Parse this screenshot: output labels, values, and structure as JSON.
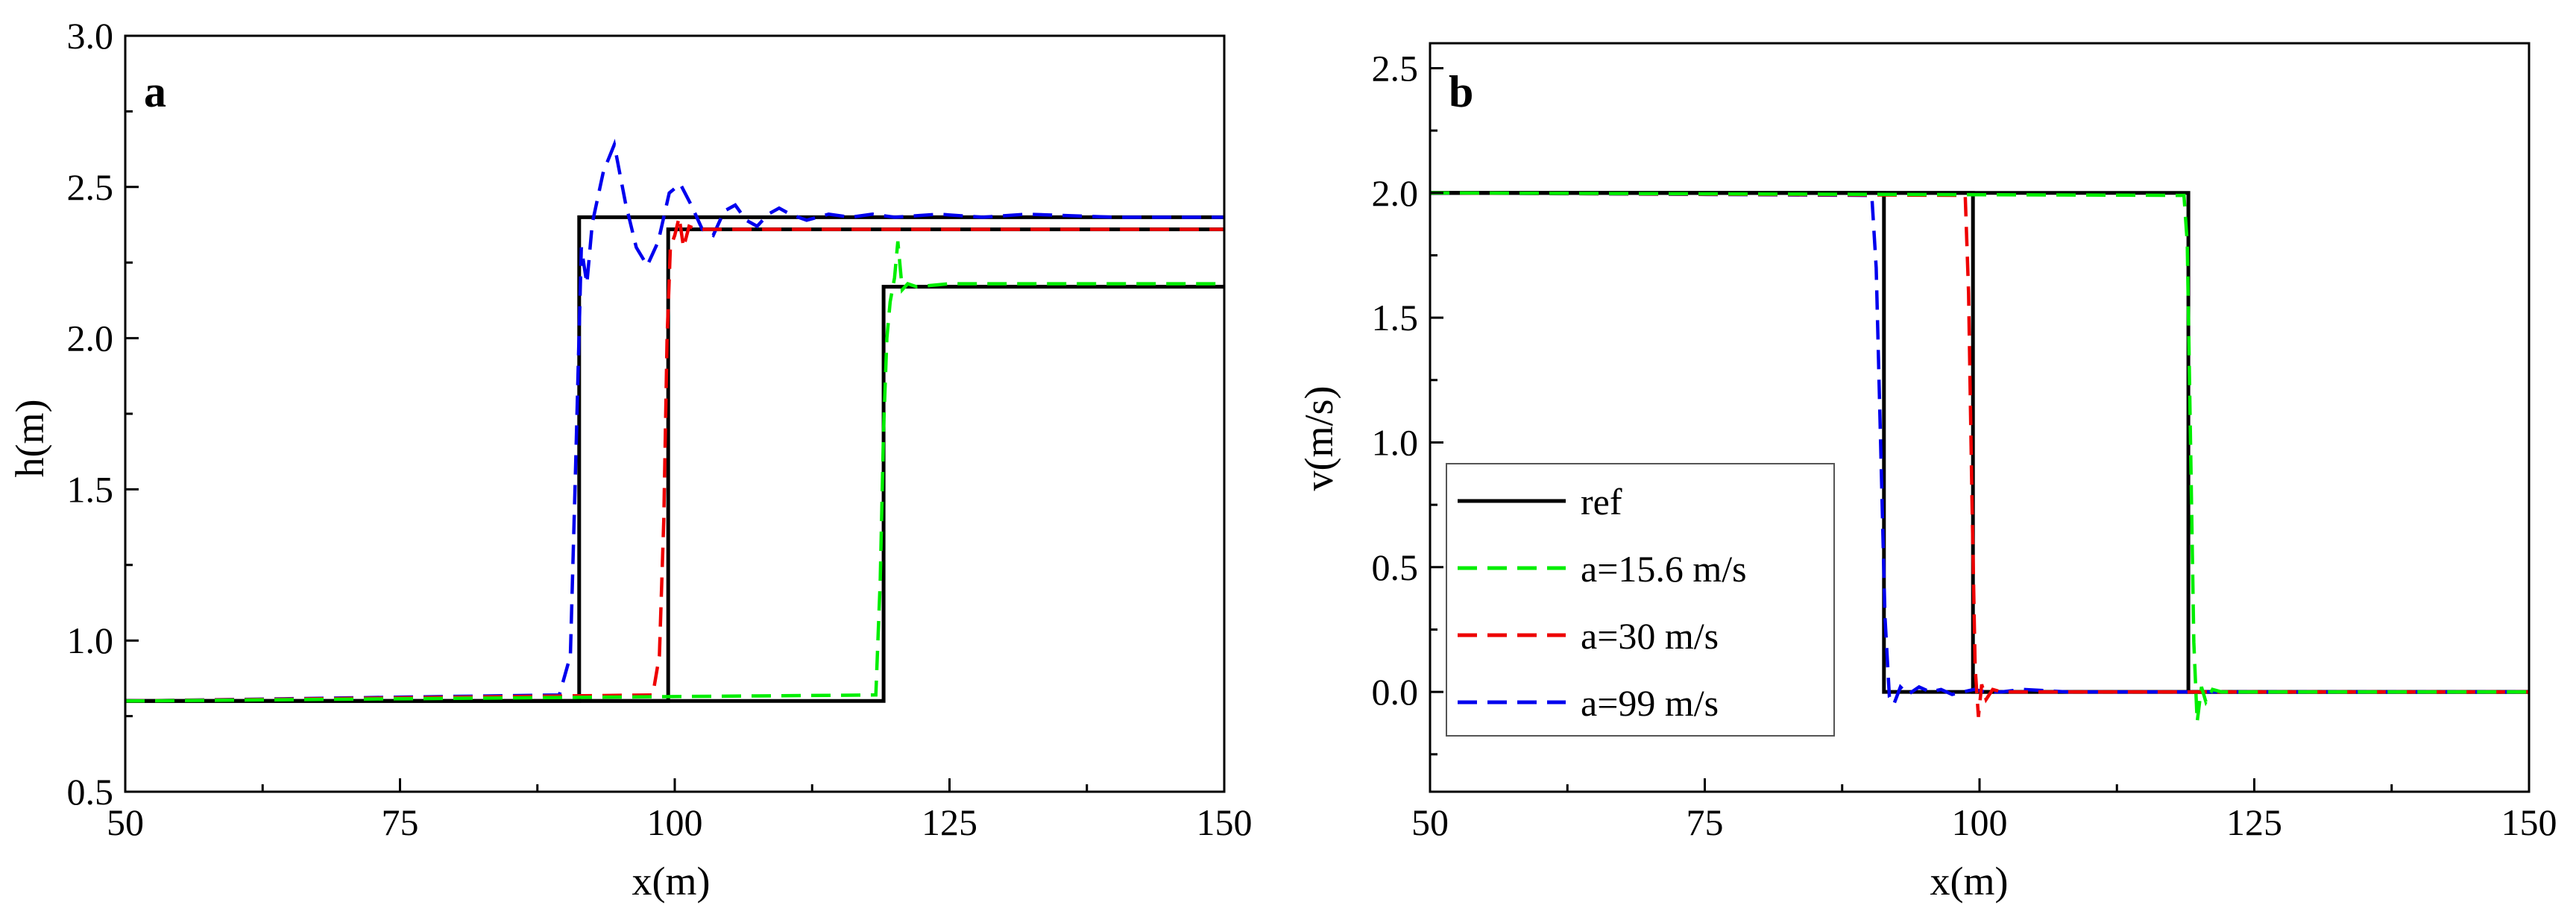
{
  "figure": {
    "colors": {
      "ref": "#000000",
      "a15": "#00ee00",
      "a30": "#ee0000",
      "a99": "#0000ee"
    }
  },
  "chart_data": [
    {
      "type": "line",
      "panel_label": "a",
      "xlabel": "x(m)",
      "ylabel": "h(m)",
      "xlim": [
        50,
        150
      ],
      "ylim": [
        0.5,
        3.0
      ],
      "xticks": [
        "50",
        "75",
        "100",
        "125",
        "150"
      ],
      "yticks": [
        "0.5",
        "1.0",
        "1.5",
        "2.0",
        "2.5",
        "3.0"
      ],
      "legend": null,
      "series": [
        {
          "key": "ref",
          "style": "solid",
          "x": [
            50,
            91.3,
            91.3,
            150
          ],
          "y": [
            0.8,
            0.8,
            2.4,
            2.4
          ]
        },
        {
          "key": "ref",
          "style": "solid",
          "x": [
            50,
            99.4,
            99.4,
            150
          ],
          "y": [
            0.8,
            0.8,
            2.36,
            2.36
          ]
        },
        {
          "key": "ref",
          "style": "solid",
          "x": [
            50,
            119.0,
            119.0,
            150
          ],
          "y": [
            0.8,
            0.8,
            2.17,
            2.17
          ]
        },
        {
          "key": "a99",
          "style": "dashed",
          "x": [
            50,
            89.5,
            90.5,
            91.0,
            91.5,
            92.0,
            92.5,
            93.5,
            94.5,
            95.5,
            96.5,
            97.5,
            98.5,
            99.5,
            100.5,
            101.5,
            102.5,
            103.5,
            104.5,
            105.5,
            106.5,
            107.5,
            108.5,
            109.5,
            110.5,
            112,
            114,
            116,
            118,
            120,
            124,
            128,
            132,
            140,
            150
          ],
          "y": [
            0.8,
            0.82,
            0.95,
            1.6,
            2.3,
            2.18,
            2.38,
            2.55,
            2.64,
            2.45,
            2.3,
            2.24,
            2.32,
            2.48,
            2.51,
            2.44,
            2.36,
            2.34,
            2.42,
            2.44,
            2.39,
            2.37,
            2.41,
            2.43,
            2.41,
            2.39,
            2.41,
            2.4,
            2.41,
            2.4,
            2.41,
            2.4,
            2.41,
            2.4,
            2.4
          ]
        },
        {
          "key": "a30",
          "style": "dashed",
          "x": [
            50,
            98.0,
            98.6,
            99.0,
            99.3,
            99.6,
            100.0,
            100.4,
            100.8,
            101.3,
            102,
            104,
            110,
            150
          ],
          "y": [
            0.8,
            0.82,
            0.95,
            1.4,
            2.0,
            2.3,
            2.34,
            2.4,
            2.3,
            2.37,
            2.36,
            2.36,
            2.36,
            2.36
          ]
        },
        {
          "key": "a15",
          "style": "dashed",
          "x": [
            50,
            118.3,
            118.7,
            119.0,
            119.3,
            119.6,
            120.0,
            120.3,
            120.7,
            121.2,
            122,
            125,
            130,
            150
          ],
          "y": [
            0.8,
            0.82,
            1.2,
            1.7,
            2.0,
            2.12,
            2.2,
            2.32,
            2.16,
            2.18,
            2.17,
            2.18,
            2.18,
            2.18
          ]
        }
      ]
    },
    {
      "type": "line",
      "panel_label": "b",
      "xlabel": "x(m)",
      "ylabel": "v(m/s)",
      "xlim": [
        50,
        150
      ],
      "ylim": [
        -0.4,
        2.6
      ],
      "xticks": [
        "50",
        "75",
        "100",
        "125",
        "150"
      ],
      "yticks": [
        "0.0",
        "0.5",
        "1.0",
        "1.5",
        "2.0",
        "2.5"
      ],
      "legend": {
        "placement": "lower-left",
        "entries": [
          {
            "key": "ref",
            "style": "solid",
            "label": "ref"
          },
          {
            "key": "a15",
            "style": "dashed",
            "label": "a=15.6 m/s"
          },
          {
            "key": "a30",
            "style": "dashed",
            "label": "a=30 m/s"
          },
          {
            "key": "a99",
            "style": "dashed",
            "label": "a=99 m/s"
          }
        ]
      },
      "series": [
        {
          "key": "ref",
          "style": "solid",
          "x": [
            50,
            91.3,
            91.3,
            150
          ],
          "y": [
            2.0,
            2.0,
            0.0,
            0.0
          ]
        },
        {
          "key": "ref",
          "style": "solid",
          "x": [
            50,
            99.4,
            99.4,
            150
          ],
          "y": [
            2.0,
            2.0,
            0.0,
            0.0
          ]
        },
        {
          "key": "ref",
          "style": "solid",
          "x": [
            50,
            119.0,
            119.0,
            150
          ],
          "y": [
            2.0,
            2.0,
            0.0,
            0.0
          ]
        },
        {
          "key": "a99",
          "style": "dashed",
          "x": [
            50,
            90.2,
            90.6,
            91.0,
            91.4,
            91.8,
            92.2,
            92.8,
            93.5,
            94.5,
            95.5,
            96.5,
            97.5,
            98.5,
            99.5,
            100.5,
            102,
            104,
            108,
            150
          ],
          "y": [
            2.0,
            1.99,
            1.7,
            1.0,
            0.3,
            -0.02,
            -0.05,
            0.02,
            -0.01,
            0.02,
            0.0,
            0.01,
            -0.01,
            0.0,
            0.01,
            0.0,
            0.0,
            0.01,
            0.0,
            0.0
          ]
        },
        {
          "key": "a30",
          "style": "dashed",
          "x": [
            50,
            98.7,
            99.0,
            99.3,
            99.6,
            99.9,
            100.2,
            100.6,
            101.2,
            102,
            105,
            150
          ],
          "y": [
            2.0,
            1.99,
            1.6,
            0.8,
            0.1,
            -0.1,
            0.03,
            -0.03,
            0.01,
            0.0,
            0.0,
            0.0
          ]
        },
        {
          "key": "a15",
          "style": "dashed",
          "x": [
            50,
            118.6,
            118.9,
            119.2,
            119.5,
            119.8,
            120.2,
            120.6,
            121.2,
            122,
            125,
            150
          ],
          "y": [
            2.0,
            1.99,
            1.8,
            1.0,
            0.2,
            -0.12,
            0.02,
            -0.04,
            0.01,
            0.0,
            0.0,
            0.0
          ]
        }
      ]
    }
  ]
}
